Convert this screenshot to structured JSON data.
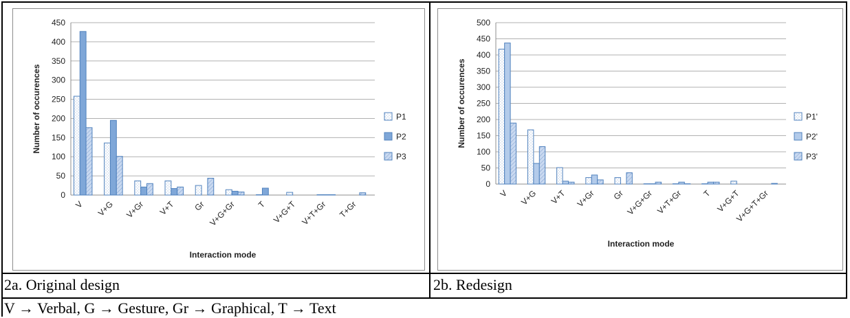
{
  "captions": {
    "left": "2a. Original design",
    "right": "2b. Redesign",
    "footer": "V → Verbal, G → Gesture, Gr → Graphical, T → Text"
  },
  "colors": {
    "series1_fill": "#ffffff",
    "series1_stroke": "#4f81bd",
    "series2_fill": "#7fa7d8",
    "series2_stroke": "#4f81bd",
    "series2b_fill": "#b3cbea",
    "series3_fill": "#c9d9f0",
    "series3_stroke": "#4f81bd",
    "grid": "#b0b0b0"
  },
  "chart_data": [
    {
      "type": "bar",
      "title": "",
      "xlabel": "Interaction mode",
      "ylabel": "Number of occurences",
      "ylim": [
        0,
        450
      ],
      "yticks": [
        0,
        50,
        100,
        150,
        200,
        250,
        300,
        350,
        400,
        450
      ],
      "grid": true,
      "legend_position": "right",
      "categories": [
        "V",
        "V+G",
        "V+Gr",
        "V+T",
        "Gr",
        "V+G+Gr",
        "T",
        "V+G+T",
        "V+T+Gr",
        "T+Gr"
      ],
      "series": [
        {
          "name": "P1",
          "values": [
            258,
            136,
            37,
            37,
            25,
            14,
            1,
            7,
            1,
            0
          ]
        },
        {
          "name": "P2",
          "values": [
            427,
            195,
            21,
            17,
            0,
            10,
            18,
            0,
            1,
            0
          ]
        },
        {
          "name": "P3",
          "values": [
            176,
            101,
            30,
            21,
            44,
            8,
            0,
            0,
            1,
            6
          ]
        }
      ]
    },
    {
      "type": "bar",
      "title": "",
      "xlabel": "Interaction mode",
      "ylabel": "Number of occurences",
      "ylim": [
        0,
        500
      ],
      "yticks": [
        0,
        50,
        100,
        150,
        200,
        250,
        300,
        350,
        400,
        450,
        500
      ],
      "grid": true,
      "legend_position": "right",
      "categories": [
        "V",
        "V+G",
        "V+T",
        "V+Gr",
        "Gr",
        "V+G+Gr",
        "V+T+Gr",
        "T",
        "V+G+T",
        "V+G+T+Gr"
      ],
      "series": [
        {
          "name": "P1'",
          "values": [
            418,
            168,
            51,
            20,
            20,
            1,
            1,
            1,
            9,
            0
          ]
        },
        {
          "name": "P2'",
          "values": [
            437,
            64,
            9,
            28,
            0,
            1,
            6,
            6,
            0,
            0
          ]
        },
        {
          "name": "P3'",
          "values": [
            189,
            116,
            6,
            13,
            35,
            6,
            1,
            6,
            0,
            2
          ]
        }
      ]
    }
  ]
}
